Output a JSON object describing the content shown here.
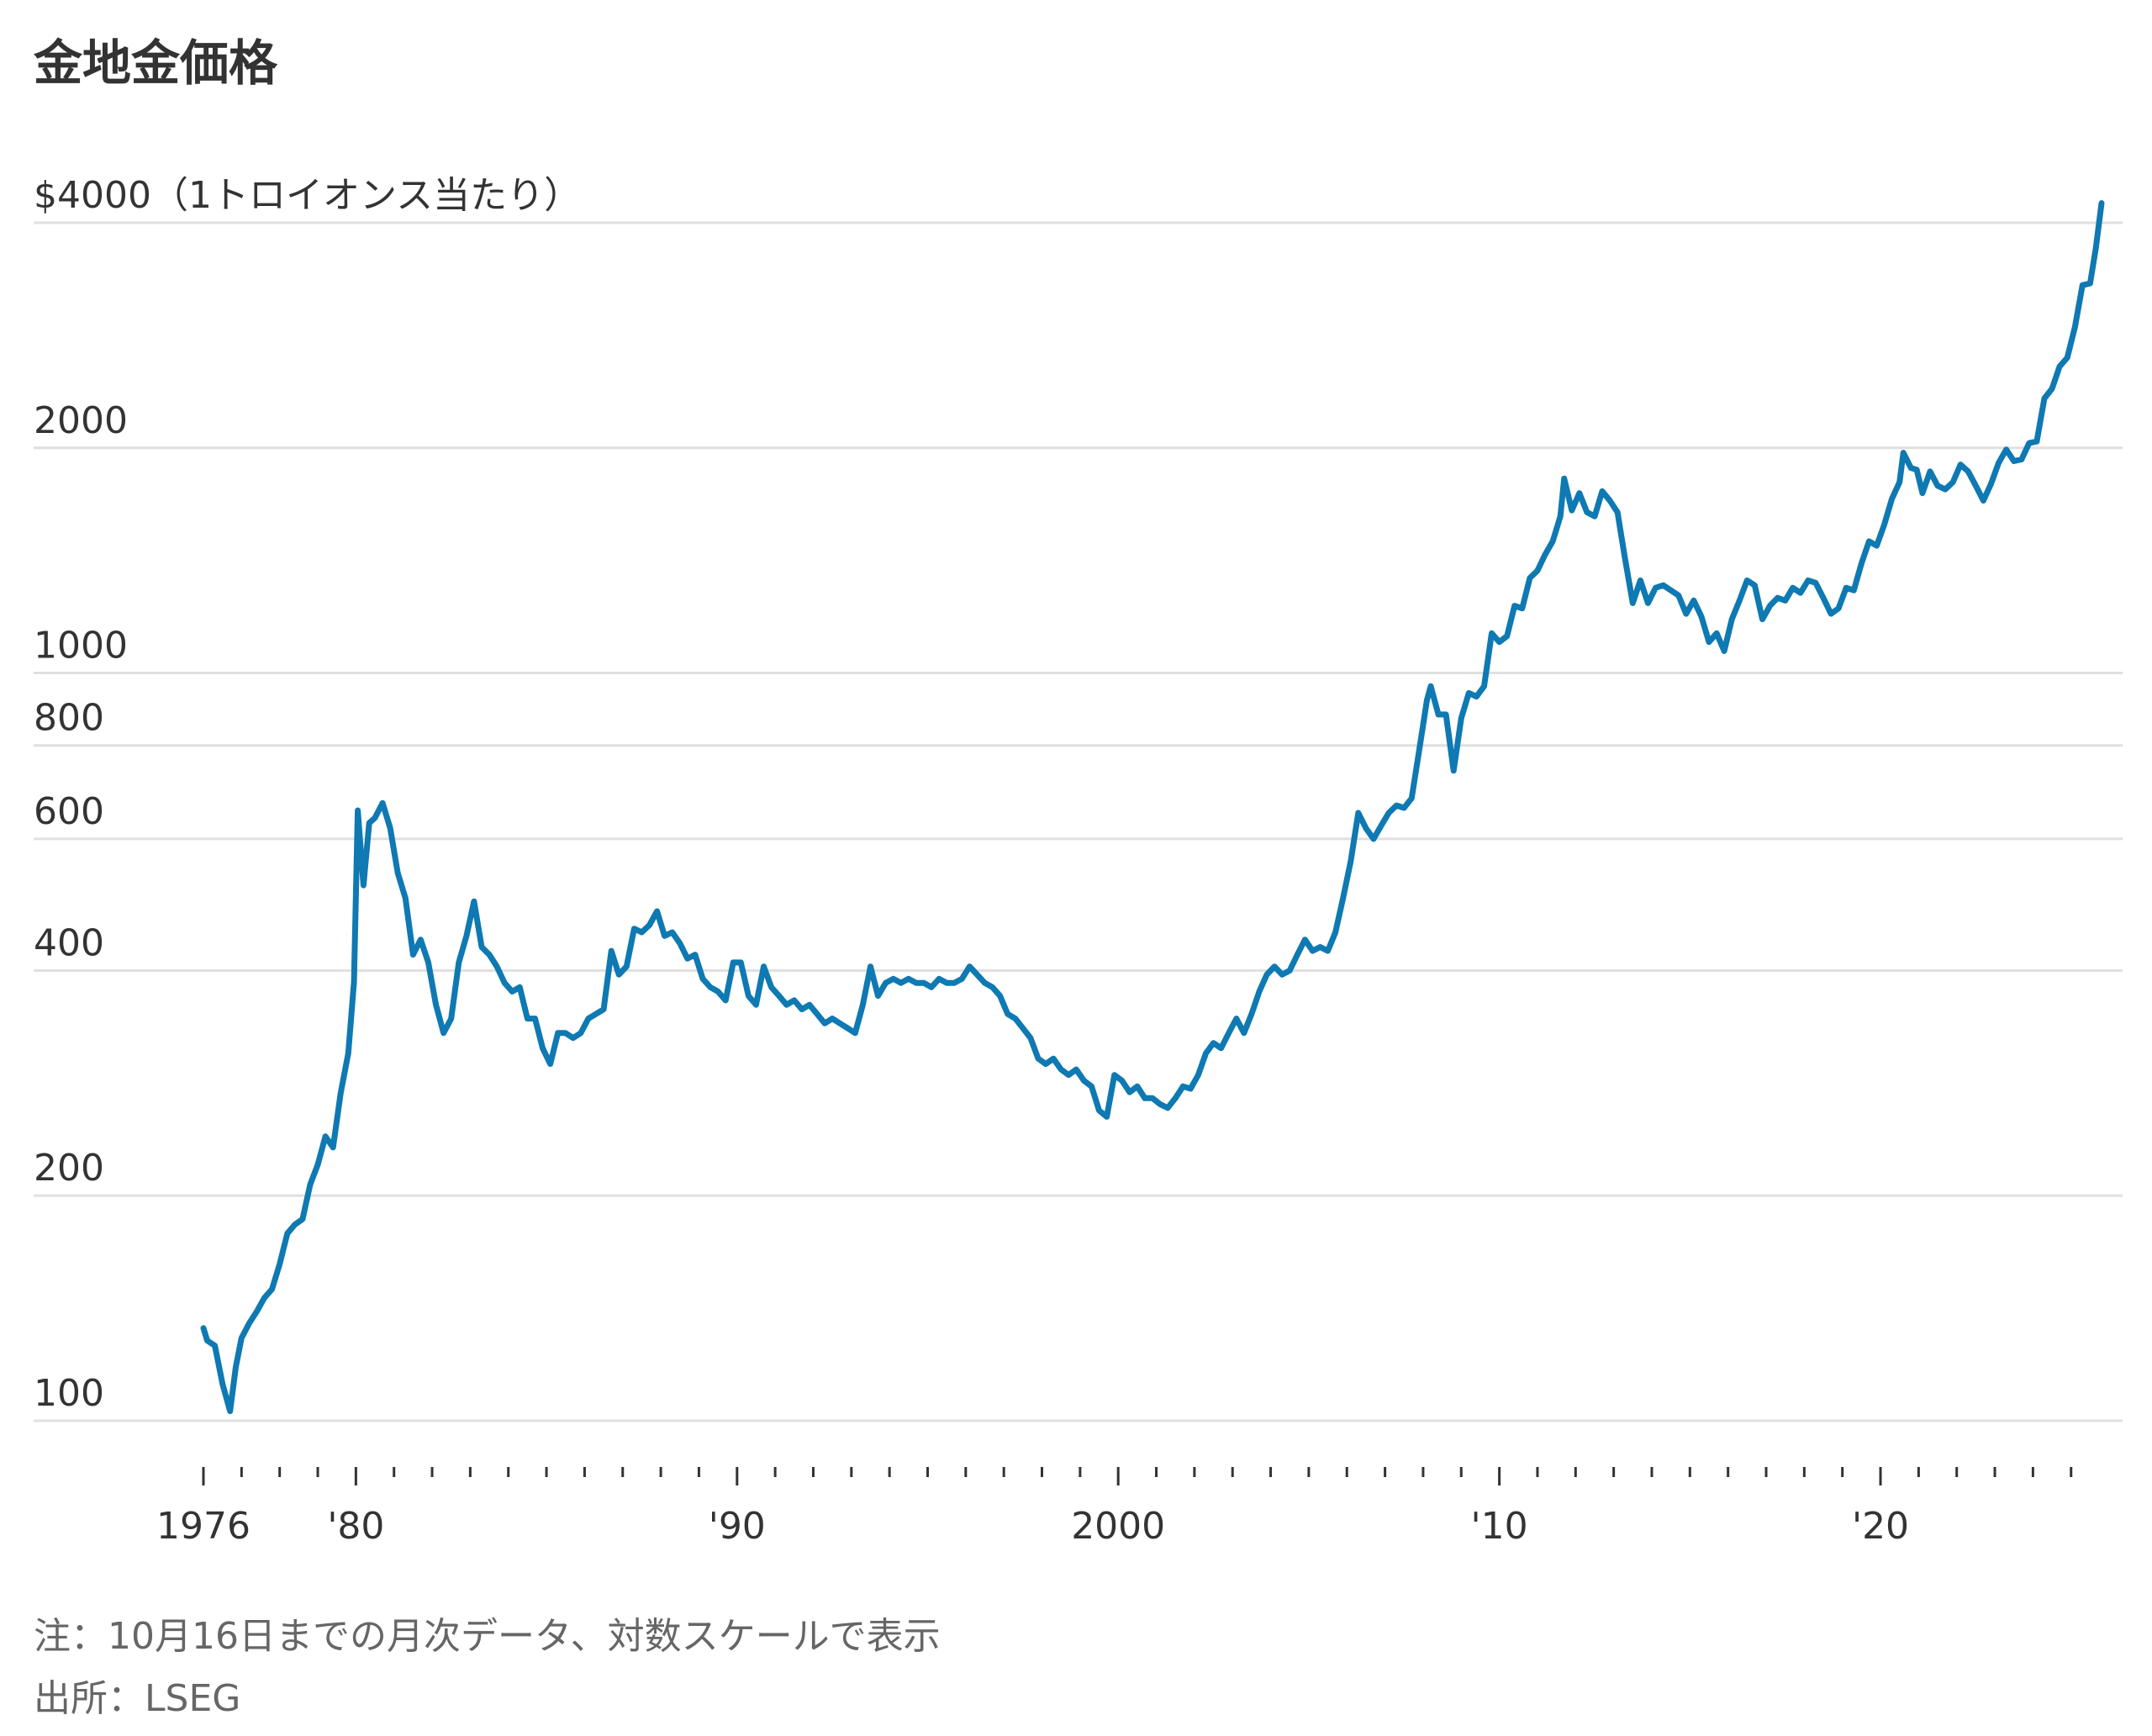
{
  "title": "金地金価格",
  "notes": {
    "note": "注：10月16日までの月次データ、対数スケールで表示",
    "source": "出所：LSEG"
  },
  "colors": {
    "line": "#0e79b2",
    "grid": "#e0e0e0",
    "text": "#333333",
    "note": "#666666"
  },
  "chart_data": {
    "type": "line",
    "y_scale": "log",
    "ylim": [
      100,
      4000
    ],
    "y_ticks": [
      {
        "value": 4000,
        "label": "$4000（1トロイオンス当たり）"
      },
      {
        "value": 2000,
        "label": "2000"
      },
      {
        "value": 1000,
        "label": "1000"
      },
      {
        "value": 800,
        "label": "800"
      },
      {
        "value": 600,
        "label": "600"
      },
      {
        "value": 400,
        "label": "400"
      },
      {
        "value": 200,
        "label": "200"
      },
      {
        "value": 100,
        "label": "100"
      }
    ],
    "xlim": [
      1976,
      2025.8
    ],
    "x_ticks": [
      {
        "value": 1976,
        "label": "1976"
      },
      {
        "value": 1980,
        "label": "'80"
      },
      {
        "value": 1990,
        "label": "'90"
      },
      {
        "value": 2000,
        "label": "2000"
      },
      {
        "value": 2010,
        "label": "'10"
      },
      {
        "value": 2020,
        "label": "'20"
      }
    ],
    "minor_ticks_years": [
      1976,
      1977,
      1978,
      1979,
      1980,
      1981,
      1982,
      1983,
      1984,
      1985,
      1986,
      1987,
      1988,
      1989,
      1990,
      1991,
      1992,
      1993,
      1994,
      1995,
      1996,
      1997,
      1998,
      1999,
      2000,
      2001,
      2002,
      2003,
      2004,
      2005,
      2006,
      2007,
      2008,
      2009,
      2010,
      2011,
      2012,
      2013,
      2014,
      2015,
      2016,
      2017,
      2018,
      2019,
      2020,
      2021,
      2022,
      2023,
      2024,
      2025
    ],
    "series": [
      {
        "points": [
          [
            1976.0,
            133
          ],
          [
            1976.1,
            128
          ],
          [
            1976.3,
            126
          ],
          [
            1976.5,
            112
          ],
          [
            1976.7,
            103
          ],
          [
            1976.85,
            118
          ],
          [
            1977.0,
            129
          ],
          [
            1977.2,
            135
          ],
          [
            1977.4,
            140
          ],
          [
            1977.6,
            146
          ],
          [
            1977.8,
            150
          ],
          [
            1978.0,
            162
          ],
          [
            1978.2,
            178
          ],
          [
            1978.4,
            183
          ],
          [
            1978.6,
            186
          ],
          [
            1978.8,
            207
          ],
          [
            1979.0,
            220
          ],
          [
            1979.2,
            240
          ],
          [
            1979.4,
            232
          ],
          [
            1979.6,
            274
          ],
          [
            1979.8,
            310
          ],
          [
            1979.95,
            386
          ],
          [
            1980.05,
            655
          ],
          [
            1980.2,
            520
          ],
          [
            1980.35,
            630
          ],
          [
            1980.5,
            640
          ],
          [
            1980.7,
            670
          ],
          [
            1980.9,
            620
          ],
          [
            1981.1,
            540
          ],
          [
            1981.3,
            500
          ],
          [
            1981.5,
            420
          ],
          [
            1981.7,
            440
          ],
          [
            1981.9,
            410
          ],
          [
            1982.1,
            360
          ],
          [
            1982.3,
            330
          ],
          [
            1982.5,
            345
          ],
          [
            1982.7,
            410
          ],
          [
            1982.9,
            445
          ],
          [
            1983.1,
            495
          ],
          [
            1983.3,
            430
          ],
          [
            1983.5,
            420
          ],
          [
            1983.7,
            405
          ],
          [
            1983.9,
            385
          ],
          [
            1984.1,
            375
          ],
          [
            1984.3,
            380
          ],
          [
            1984.5,
            345
          ],
          [
            1984.7,
            345
          ],
          [
            1984.9,
            315
          ],
          [
            1985.1,
            300
          ],
          [
            1985.3,
            330
          ],
          [
            1985.5,
            330
          ],
          [
            1985.7,
            325
          ],
          [
            1985.9,
            330
          ],
          [
            1986.1,
            345
          ],
          [
            1986.3,
            350
          ],
          [
            1986.5,
            355
          ],
          [
            1986.7,
            425
          ],
          [
            1986.9,
            395
          ],
          [
            1987.1,
            405
          ],
          [
            1987.3,
            455
          ],
          [
            1987.5,
            450
          ],
          [
            1987.7,
            460
          ],
          [
            1987.9,
            480
          ],
          [
            1988.1,
            445
          ],
          [
            1988.3,
            450
          ],
          [
            1988.5,
            435
          ],
          [
            1988.7,
            415
          ],
          [
            1988.9,
            420
          ],
          [
            1989.1,
            390
          ],
          [
            1989.3,
            380
          ],
          [
            1989.5,
            375
          ],
          [
            1989.7,
            365
          ],
          [
            1989.9,
            410
          ],
          [
            1990.1,
            410
          ],
          [
            1990.3,
            370
          ],
          [
            1990.5,
            360
          ],
          [
            1990.7,
            405
          ],
          [
            1990.9,
            380
          ],
          [
            1991.1,
            370
          ],
          [
            1991.3,
            360
          ],
          [
            1991.5,
            365
          ],
          [
            1991.7,
            355
          ],
          [
            1991.9,
            360
          ],
          [
            1992.1,
            350
          ],
          [
            1992.3,
            340
          ],
          [
            1992.5,
            345
          ],
          [
            1992.7,
            340
          ],
          [
            1992.9,
            335
          ],
          [
            1993.1,
            330
          ],
          [
            1993.3,
            360
          ],
          [
            1993.5,
            405
          ],
          [
            1993.7,
            370
          ],
          [
            1993.9,
            385
          ],
          [
            1994.1,
            390
          ],
          [
            1994.3,
            385
          ],
          [
            1994.5,
            390
          ],
          [
            1994.7,
            385
          ],
          [
            1994.9,
            385
          ],
          [
            1995.1,
            380
          ],
          [
            1995.3,
            390
          ],
          [
            1995.5,
            385
          ],
          [
            1995.7,
            385
          ],
          [
            1995.9,
            390
          ],
          [
            1996.1,
            405
          ],
          [
            1996.3,
            395
          ],
          [
            1996.5,
            385
          ],
          [
            1996.7,
            380
          ],
          [
            1996.9,
            370
          ],
          [
            1997.1,
            350
          ],
          [
            1997.3,
            345
          ],
          [
            1997.5,
            335
          ],
          [
            1997.7,
            325
          ],
          [
            1997.9,
            305
          ],
          [
            1998.1,
            300
          ],
          [
            1998.3,
            305
          ],
          [
            1998.5,
            295
          ],
          [
            1998.7,
            290
          ],
          [
            1998.9,
            295
          ],
          [
            1999.1,
            285
          ],
          [
            1999.3,
            280
          ],
          [
            1999.5,
            260
          ],
          [
            1999.7,
            255
          ],
          [
            1999.9,
            290
          ],
          [
            2000.1,
            285
          ],
          [
            2000.3,
            275
          ],
          [
            2000.5,
            280
          ],
          [
            2000.7,
            270
          ],
          [
            2000.9,
            270
          ],
          [
            2001.1,
            265
          ],
          [
            2001.3,
            262
          ],
          [
            2001.5,
            270
          ],
          [
            2001.7,
            280
          ],
          [
            2001.9,
            278
          ],
          [
            2002.1,
            290
          ],
          [
            2002.3,
            310
          ],
          [
            2002.5,
            320
          ],
          [
            2002.7,
            315
          ],
          [
            2002.9,
            330
          ],
          [
            2003.1,
            345
          ],
          [
            2003.3,
            330
          ],
          [
            2003.5,
            350
          ],
          [
            2003.7,
            375
          ],
          [
            2003.9,
            395
          ],
          [
            2004.1,
            405
          ],
          [
            2004.3,
            395
          ],
          [
            2004.5,
            400
          ],
          [
            2004.7,
            420
          ],
          [
            2004.9,
            440
          ],
          [
            2005.1,
            425
          ],
          [
            2005.3,
            430
          ],
          [
            2005.5,
            425
          ],
          [
            2005.7,
            450
          ],
          [
            2005.9,
            500
          ],
          [
            2006.1,
            560
          ],
          [
            2006.3,
            650
          ],
          [
            2006.5,
            620
          ],
          [
            2006.7,
            600
          ],
          [
            2006.9,
            625
          ],
          [
            2007.1,
            650
          ],
          [
            2007.3,
            665
          ],
          [
            2007.5,
            660
          ],
          [
            2007.7,
            680
          ],
          [
            2007.9,
            790
          ],
          [
            2008.1,
            920
          ],
          [
            2008.2,
            960
          ],
          [
            2008.4,
            880
          ],
          [
            2008.6,
            880
          ],
          [
            2008.8,
            740
          ],
          [
            2009.0,
            870
          ],
          [
            2009.2,
            940
          ],
          [
            2009.4,
            930
          ],
          [
            2009.6,
            960
          ],
          [
            2009.8,
            1130
          ],
          [
            2010.0,
            1100
          ],
          [
            2010.2,
            1120
          ],
          [
            2010.4,
            1230
          ],
          [
            2010.6,
            1220
          ],
          [
            2010.8,
            1340
          ],
          [
            2011.0,
            1370
          ],
          [
            2011.2,
            1440
          ],
          [
            2011.4,
            1500
          ],
          [
            2011.6,
            1620
          ],
          [
            2011.7,
            1820
          ],
          [
            2011.9,
            1650
          ],
          [
            2012.1,
            1740
          ],
          [
            2012.3,
            1640
          ],
          [
            2012.5,
            1620
          ],
          [
            2012.7,
            1750
          ],
          [
            2012.9,
            1700
          ],
          [
            2013.1,
            1640
          ],
          [
            2013.3,
            1420
          ],
          [
            2013.5,
            1240
          ],
          [
            2013.7,
            1330
          ],
          [
            2013.9,
            1240
          ],
          [
            2014.1,
            1300
          ],
          [
            2014.3,
            1310
          ],
          [
            2014.5,
            1290
          ],
          [
            2014.7,
            1270
          ],
          [
            2014.9,
            1200
          ],
          [
            2015.1,
            1250
          ],
          [
            2015.3,
            1190
          ],
          [
            2015.5,
            1100
          ],
          [
            2015.7,
            1130
          ],
          [
            2015.9,
            1070
          ],
          [
            2016.1,
            1180
          ],
          [
            2016.3,
            1250
          ],
          [
            2016.5,
            1330
          ],
          [
            2016.7,
            1310
          ],
          [
            2016.9,
            1180
          ],
          [
            2017.1,
            1230
          ],
          [
            2017.3,
            1260
          ],
          [
            2017.5,
            1250
          ],
          [
            2017.7,
            1300
          ],
          [
            2017.9,
            1280
          ],
          [
            2018.1,
            1330
          ],
          [
            2018.3,
            1320
          ],
          [
            2018.5,
            1260
          ],
          [
            2018.7,
            1200
          ],
          [
            2018.9,
            1220
          ],
          [
            2019.1,
            1300
          ],
          [
            2019.3,
            1290
          ],
          [
            2019.5,
            1400
          ],
          [
            2019.7,
            1500
          ],
          [
            2019.9,
            1480
          ],
          [
            2020.1,
            1580
          ],
          [
            2020.3,
            1710
          ],
          [
            2020.5,
            1800
          ],
          [
            2020.6,
            1970
          ],
          [
            2020.8,
            1880
          ],
          [
            2020.95,
            1870
          ],
          [
            2021.1,
            1740
          ],
          [
            2021.3,
            1860
          ],
          [
            2021.5,
            1780
          ],
          [
            2021.7,
            1760
          ],
          [
            2021.9,
            1800
          ],
          [
            2022.1,
            1900
          ],
          [
            2022.3,
            1860
          ],
          [
            2022.5,
            1780
          ],
          [
            2022.7,
            1700
          ],
          [
            2022.9,
            1790
          ],
          [
            2023.1,
            1910
          ],
          [
            2023.3,
            1990
          ],
          [
            2023.5,
            1920
          ],
          [
            2023.7,
            1930
          ],
          [
            2023.9,
            2030
          ],
          [
            2024.1,
            2040
          ],
          [
            2024.3,
            2330
          ],
          [
            2024.5,
            2400
          ],
          [
            2024.7,
            2570
          ],
          [
            2024.9,
            2640
          ],
          [
            2025.1,
            2900
          ],
          [
            2025.3,
            3300
          ],
          [
            2025.5,
            3320
          ],
          [
            2025.65,
            3700
          ],
          [
            2025.8,
            4250
          ]
        ]
      }
    ]
  }
}
